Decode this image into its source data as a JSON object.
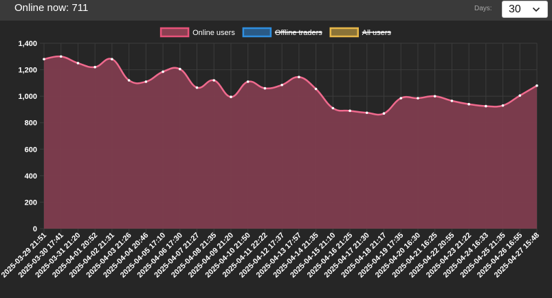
{
  "header": {
    "title": "Online now: 711",
    "days_label": "Days:",
    "days_value": "30"
  },
  "chart_data": {
    "type": "area",
    "title": "",
    "xlabel": "",
    "ylabel": "",
    "ylim": [
      0,
      1400
    ],
    "y_ticks": [
      0,
      200,
      400,
      600,
      800,
      "1,000",
      "1,200",
      "1,400"
    ],
    "grid": true,
    "legend_placement": "top-center",
    "legend": [
      {
        "name": "Online users",
        "hidden": false,
        "border": "#e8537a",
        "fill": "#8a4052"
      },
      {
        "name": "Offline traders",
        "hidden": true,
        "border": "#2f8fe0",
        "fill": "#2a5a86"
      },
      {
        "name": "All users",
        "hidden": true,
        "border": "#e8b84a",
        "fill": "#8a7338"
      }
    ],
    "x": [
      "2025-03-29 21:51",
      "2025-03-30 17:41",
      "2025-03-31 21:20",
      "2025-04-01 20:52",
      "2025-04-02 21:31",
      "2025-04-03 21:26",
      "2025-04-04 20:46",
      "2025-04-05 17:10",
      "2025-04-06 17:30",
      "2025-04-07 21:27",
      "2025-04-08 21:35",
      "2025-04-09 21:20",
      "2025-04-10 21:50",
      "2025-04-11 22:22",
      "2025-04-12 17:37",
      "2025-04-13 17:57",
      "2025-04-14 21:35",
      "2025-04-15 21:10",
      "2025-04-16 21:25",
      "2025-04-17 21:30",
      "2025-04-18 21:17",
      "2025-04-19 17:35",
      "2025-04-20 16:30",
      "2025-04-21 16:25",
      "2025-04-22 20:55",
      "2025-04-23 21:22",
      "2025-04-24 16:33",
      "2025-04-25 21:35",
      "2025-04-26 16:55",
      "2025-04-27 15:48"
    ],
    "series": [
      {
        "name": "Online users",
        "line_color": "#f06a8e",
        "fill_color": "#7e3c4e",
        "values": [
          1280,
          1300,
          1250,
          1220,
          1280,
          1120,
          1110,
          1185,
          1205,
          1065,
          1120,
          995,
          1110,
          1060,
          1085,
          1145,
          1055,
          910,
          890,
          875,
          870,
          985,
          985,
          1000,
          965,
          940,
          925,
          930,
          1005,
          1080
        ]
      }
    ]
  }
}
